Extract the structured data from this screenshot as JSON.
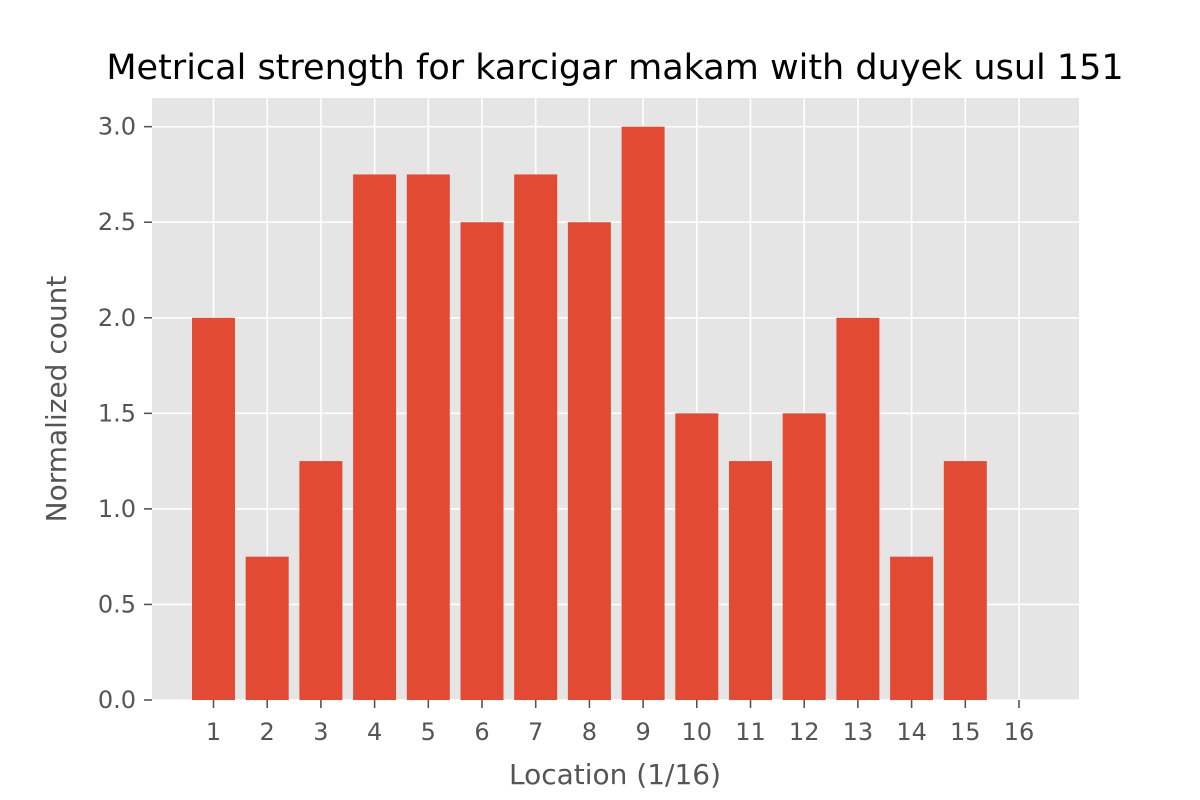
{
  "chart_data": {
    "type": "bar",
    "title": "Metrical strength for karcigar makam with duyek usul 151",
    "xlabel": "Location (1/16)",
    "ylabel": "Normalized count",
    "categories": [
      "1",
      "2",
      "3",
      "4",
      "5",
      "6",
      "7",
      "8",
      "9",
      "10",
      "11",
      "12",
      "13",
      "14",
      "15",
      "16"
    ],
    "values": [
      2.0,
      0.75,
      1.25,
      2.75,
      2.75,
      2.5,
      2.75,
      2.5,
      3.0,
      1.5,
      1.25,
      1.5,
      2.0,
      0.75,
      1.25,
      0.0
    ],
    "yticks": [
      "0.0",
      "0.5",
      "1.0",
      "1.5",
      "2.0",
      "2.5",
      "3.0"
    ],
    "ylim": [
      0,
      3.15
    ],
    "grid": true,
    "colors": {
      "bar": "#E24A33",
      "plot_bg": "#E5E5E5",
      "grid": "#FFFFFF"
    }
  }
}
